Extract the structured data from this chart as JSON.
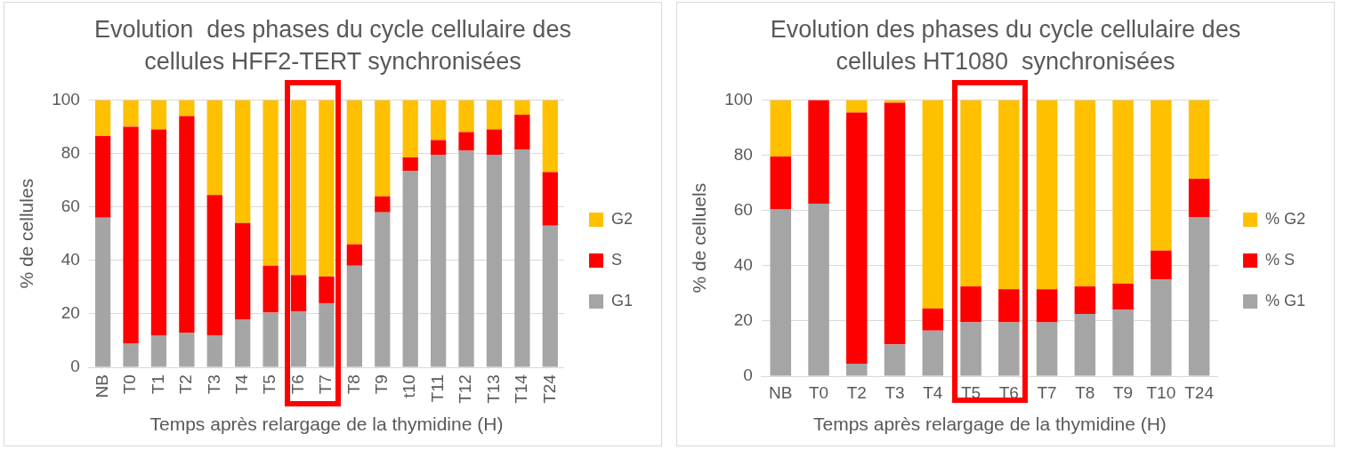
{
  "chart_data": [
    {
      "type": "bar",
      "title": "Evolution  des phases du cycle cellulaire des cellules HFF2-TERT synchronisées",
      "xlabel": "Temps après relargage de la thymidine (H)",
      "ylabel": "% de cellules",
      "stacked": true,
      "categories": [
        "NB",
        "T0",
        "T1",
        "T2",
        "T3",
        "T4",
        "T5",
        "T6",
        "T7",
        "T8",
        "T9",
        "t10",
        "T11",
        "T12",
        "T13",
        "T14",
        "T24"
      ],
      "series": [
        {
          "name": "G1",
          "color": "#a5a5a5",
          "values": [
            56,
            9,
            12,
            13,
            12,
            18,
            20.5,
            21,
            24,
            38,
            58,
            73.5,
            79.5,
            81,
            79.5,
            81.5,
            53
          ]
        },
        {
          "name": "S",
          "color": "#ff0000",
          "values": [
            30.5,
            81,
            77,
            81,
            52.5,
            36,
            17.5,
            13.5,
            10,
            8,
            6,
            5,
            5.5,
            7,
            9.5,
            13,
            20
          ]
        },
        {
          "name": "G2",
          "color": "#ffc000",
          "values": [
            13.5,
            10,
            11,
            6,
            35.5,
            46,
            62,
            65.5,
            66,
            54,
            36,
            21.5,
            15,
            12,
            11,
            5.5,
            27
          ]
        }
      ],
      "ylim": [
        0,
        100
      ],
      "yticks": [
        0,
        20,
        40,
        60,
        80,
        100
      ],
      "grid": "y",
      "legend": "right"
    },
    {
      "type": "bar",
      "title": "Evolution des phases du cycle cellulaire des cellules HT1080  synchronisées",
      "xlabel": "Temps après relargage de la thymidine (H)",
      "ylabel": "% de celluels",
      "stacked": true,
      "categories": [
        "NB",
        "T0",
        "T2",
        "T3",
        "T4",
        "T5",
        "T6",
        "T7",
        "T8",
        "T9",
        "T10",
        "T24"
      ],
      "series": [
        {
          "name": "% G1",
          "color": "#a5a5a5",
          "values": [
            60.5,
            62.5,
            4.5,
            11.5,
            16.5,
            19.5,
            19.5,
            19.5,
            22.5,
            24,
            35,
            57.5
          ]
        },
        {
          "name": "% S",
          "color": "#ff0000",
          "values": [
            19,
            37.5,
            91,
            87.5,
            8,
            13,
            12,
            12,
            10,
            9.5,
            10.5,
            14
          ]
        },
        {
          "name": "% G2",
          "color": "#ffc000",
          "values": [
            20.5,
            0,
            4.5,
            1,
            75.5,
            67.5,
            68.5,
            68.5,
            67.5,
            66.5,
            54.5,
            28.5
          ]
        }
      ],
      "ylim": [
        0,
        100
      ],
      "yticks": [
        0,
        20,
        40,
        60,
        80,
        100
      ],
      "grid": "y",
      "legend": "right"
    }
  ]
}
